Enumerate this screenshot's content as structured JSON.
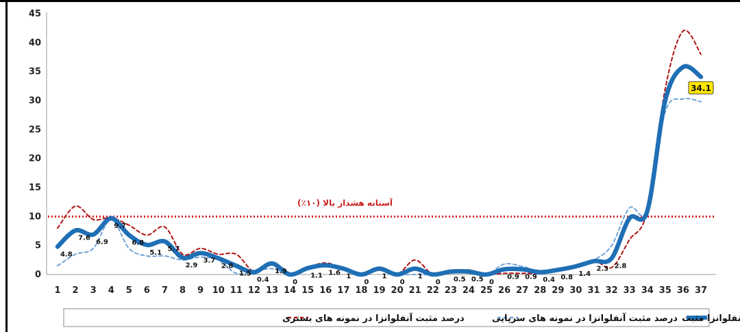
{
  "chart_data": {
    "type": "line",
    "title": "",
    "xlabel": "",
    "ylabel": "",
    "ylim": [
      0,
      45
    ],
    "yticks": [
      0,
      5,
      10,
      15,
      20,
      25,
      30,
      35,
      40,
      45
    ],
    "grid": false,
    "legend_placement": "bottom",
    "x": [
      1,
      2,
      3,
      4,
      5,
      6,
      7,
      8,
      9,
      10,
      11,
      12,
      13,
      14,
      15,
      16,
      17,
      18,
      19,
      20,
      21,
      22,
      23,
      24,
      25,
      26,
      27,
      28,
      29,
      30,
      31,
      32,
      33,
      34,
      35,
      36,
      37
    ],
    "threshold": {
      "value": 10,
      "label": "آستانه هشدار بالا (۱۰٪)",
      "color": "#d42020"
    },
    "series": [
      {
        "name": "میانگین آنفلوانزا مثبت",
        "style": "solid-thick",
        "color": "#1f6fb5",
        "values": [
          4.8,
          7.6,
          6.9,
          9.7,
          6.8,
          5.1,
          5.7,
          2.9,
          3.7,
          2.8,
          1.5,
          0.4,
          1.9,
          0,
          1.1,
          1.6,
          1,
          0,
          1,
          0,
          1,
          0,
          0.5,
          0.5,
          0,
          0.9,
          0.9,
          0.4,
          0.8,
          1.4,
          2.3,
          2.8,
          9.7,
          11,
          30,
          35.8,
          34.1
        ],
        "labels": [
          "4.8",
          "7.6",
          "6.9",
          "9.7",
          "6.8",
          "5.1",
          "5.7",
          "2.9",
          "3.7",
          "2.8",
          "1.5",
          "0.4",
          "1.9",
          "0",
          "1.1",
          "1.6",
          "1",
          "0",
          "1",
          "0",
          "1",
          "0",
          "0.5",
          "0.5",
          "0",
          "0.9",
          "0.9",
          "0.4",
          "0.8",
          "1.4",
          "2.3",
          "2.8",
          "",
          "",
          "",
          "",
          ""
        ]
      },
      {
        "name": "درصد مثبت آنفلوانزا در نمونه های سرپایی",
        "style": "dashed",
        "color": "#6fa3d8",
        "values": [
          1.5,
          3.5,
          4.5,
          9.5,
          4.5,
          3.2,
          3.2,
          2.5,
          3,
          2.5,
          0.2,
          0.5,
          1,
          0,
          1,
          1.8,
          0.8,
          0,
          0.8,
          0,
          0,
          0,
          0.6,
          0.5,
          0,
          1.8,
          1.4,
          0.5,
          0.8,
          1.5,
          2.5,
          5,
          11.5,
          11,
          28,
          30.3,
          29.8
        ]
      },
      {
        "name": "درصد مثبت آنفلوانزا در نمونه های بستری",
        "style": "dashed",
        "color": "#b01010",
        "values": [
          8,
          11.8,
          9.5,
          9.8,
          8.5,
          6.8,
          8.2,
          3.5,
          4.5,
          3.5,
          3.5,
          0.5,
          1.8,
          0,
          1.2,
          2,
          1,
          0,
          0.8,
          0,
          2.5,
          0,
          0.3,
          0.8,
          0,
          0.2,
          0.2,
          0.2,
          0.6,
          1.2,
          2.5,
          1.2,
          6,
          11,
          32,
          42,
          38
        ]
      }
    ],
    "callout": {
      "x": 37,
      "value": "34.1",
      "color": "#ffe600"
    }
  }
}
